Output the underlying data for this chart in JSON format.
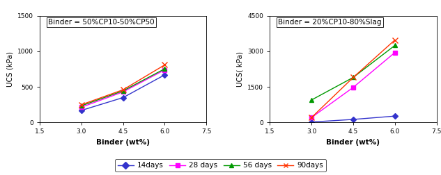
{
  "left_chart": {
    "title": "Binder = 50%CP10-50%CP50",
    "ylabel": "UCS (kPa)",
    "xlabel": "Binder (wt%)",
    "xlim": [
      1.5,
      7.5
    ],
    "ylim": [
      0,
      1500
    ],
    "yticks": [
      0,
      500,
      1000,
      1500
    ],
    "xticks": [
      1.5,
      3,
      4.5,
      6,
      7.5
    ],
    "series": {
      "14days": {
        "x": [
          3,
          4.5,
          6
        ],
        "y": [
          170,
          350,
          670
        ],
        "color": "#3333CC",
        "marker": "D",
        "ms": 4
      },
      "28days": {
        "x": [
          3,
          4.5,
          6
        ],
        "y": [
          215,
          430,
          740
        ],
        "color": "#FF00FF",
        "marker": "s",
        "ms": 4
      },
      "56days": {
        "x": [
          3,
          4.5,
          6
        ],
        "y": [
          235,
          445,
          755
        ],
        "color": "#009900",
        "marker": "^",
        "ms": 5
      },
      "90days": {
        "x": [
          3,
          4.5,
          6
        ],
        "y": [
          250,
          460,
          810
        ],
        "color": "#FF3300",
        "marker": "x",
        "ms": 6
      }
    }
  },
  "right_chart": {
    "title": "Binder = 20%CP10-80%Slag",
    "ylabel": "UCS( kPa)",
    "xlabel": "Binder (wt%)",
    "xlim": [
      1.5,
      7.5
    ],
    "ylim": [
      0,
      4500
    ],
    "yticks": [
      0,
      1500,
      3000,
      4500
    ],
    "xticks": [
      1.5,
      3,
      4.5,
      6,
      7.5
    ],
    "series": {
      "14days": {
        "x": [
          3,
          4.5,
          6
        ],
        "y": [
          20,
          130,
          270
        ],
        "color": "#3333CC",
        "marker": "D",
        "ms": 4
      },
      "28days": {
        "x": [
          3,
          4.5,
          6
        ],
        "y": [
          210,
          1480,
          2950
        ],
        "color": "#FF00FF",
        "marker": "s",
        "ms": 4
      },
      "56days": {
        "x": [
          3,
          4.5,
          6
        ],
        "y": [
          950,
          1900,
          3250
        ],
        "color": "#009900",
        "marker": "^",
        "ms": 5
      },
      "90days": {
        "x": [
          3,
          4.5,
          6
        ],
        "y": [
          210,
          1900,
          3480
        ],
        "color": "#FF3300",
        "marker": "x",
        "ms": 6
      }
    }
  },
  "legend": [
    {
      "label": "14days",
      "color": "#3333CC",
      "marker": "D"
    },
    {
      "label": "28 days",
      "color": "#FF00FF",
      "marker": "s"
    },
    {
      "label": "56 days",
      "color": "#009900",
      "marker": "^"
    },
    {
      "label": "90days",
      "color": "#FF3300",
      "marker": "x"
    }
  ],
  "title_fontsize": 7.5,
  "axis_label_fontsize": 7.5,
  "tick_fontsize": 6.5,
  "legend_fontsize": 7.5
}
